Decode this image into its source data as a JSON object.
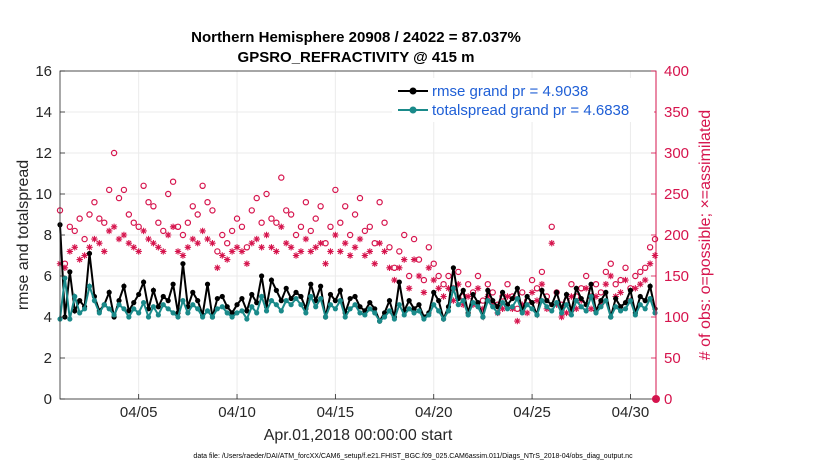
{
  "chart_data": {
    "type": "line",
    "title": "Northern Hemisphere 20908 / 24022 = 87.037%",
    "subtitle": "GPSRO_REFRACTIVITY @ 415 m",
    "xlabel": "Apr.01,2018 00:00:00 start",
    "ylabel_left": "rmse and totalspread",
    "ylabel_right": "# of obs: o=possible; ×=assimilated",
    "ylim_left": [
      0,
      16
    ],
    "ylim_right": [
      0,
      400
    ],
    "xlim": [
      1,
      31.3
    ],
    "yticks_left": [
      "0",
      "2",
      "4",
      "6",
      "8",
      "10",
      "12",
      "14",
      "16"
    ],
    "yticks_right": [
      "0",
      "50",
      "100",
      "150",
      "200",
      "250",
      "300",
      "350",
      "400"
    ],
    "xticks": [
      {
        "day": 5,
        "label": "04/05"
      },
      {
        "day": 10,
        "label": "04/10"
      },
      {
        "day": 15,
        "label": "04/15"
      },
      {
        "day": 20,
        "label": "04/20"
      },
      {
        "day": 25,
        "label": "04/25"
      },
      {
        "day": 30,
        "label": "04/30"
      }
    ],
    "series": [
      {
        "name": "rmse",
        "legend": "rmse grand pr = 4.9038",
        "color": "#000000",
        "values": [
          8.5,
          4.0,
          6.2,
          4.3,
          4.8,
          4.5,
          7.1,
          5.0,
          4.3,
          4.6,
          5.2,
          4.0,
          4.8,
          5.5,
          4.3,
          4.7,
          5.1,
          5.7,
          4.4,
          5.3,
          4.5,
          5.0,
          4.8,
          5.6,
          4.2,
          6.6,
          4.5,
          5.2,
          4.8,
          4.1,
          5.6,
          4.0,
          4.9,
          5.0,
          4.5,
          4.2,
          4.6,
          4.9,
          4.3,
          5.1,
          4.7,
          6.0,
          4.5,
          5.8,
          5.3,
          4.8,
          5.4,
          4.9,
          5.2,
          5.0,
          4.4,
          5.6,
          4.8,
          5.5,
          4.0,
          5.1,
          4.8,
          5.3,
          4.2,
          4.9,
          5.0,
          4.5,
          4.3,
          4.7,
          4.4,
          3.8,
          4.2,
          4.8,
          4.0,
          5.7,
          4.3,
          4.8,
          4.4,
          4.6,
          4.0,
          4.2,
          5.2,
          4.8,
          3.9,
          4.5,
          6.4,
          4.9,
          5.3,
          4.2,
          5.1,
          4.7,
          4.0,
          5.3,
          4.8,
          4.5,
          5.2,
          4.6,
          4.9,
          5.4,
          4.3,
          5.0,
          4.7,
          4.1,
          5.3,
          4.8,
          4.6,
          5.2,
          4.4,
          5.1,
          4.3,
          5.4,
          4.9,
          4.6,
          5.6,
          4.3,
          4.8,
          5.2,
          4.0,
          4.9,
          4.5,
          4.7,
          5.3,
          4.2,
          5.0,
          4.8,
          5.5,
          4.4,
          5.1,
          4.9,
          5.3,
          4.6,
          4.8,
          5.2,
          4.4,
          5.0,
          5.7,
          4.7,
          5.4,
          4.9,
          4.5,
          5.8,
          4.3,
          5.6,
          4.9,
          5.1,
          4.5,
          4.8,
          5.2,
          4.6,
          5.5,
          4.9,
          5.0,
          4.5,
          4.8,
          5.1,
          4.6,
          5.3,
          4.9,
          4.4,
          5.2,
          4.7,
          5.0,
          4.6,
          5.4,
          4.9,
          4.7,
          5.1,
          4.8,
          5.5,
          4.3,
          5.2,
          5.6,
          4.9,
          5.0,
          4.7,
          5.4,
          4.5,
          5.1,
          4.8,
          5.3,
          4.6,
          4.4,
          5.0,
          4.7,
          4.5,
          5.2,
          4.4,
          4.8,
          4.3,
          4.9,
          4.6,
          5.0,
          4.7,
          4.2,
          4.6,
          4.9,
          4.5,
          4.7,
          5.0,
          4.8,
          4.6,
          5.3,
          4.9,
          5.1,
          4.8,
          4.6,
          4.9,
          5.2,
          4.7,
          5.3,
          4.5,
          4.9,
          4.6,
          5.1,
          4.4,
          5.0,
          4.8,
          5.4,
          4.9,
          4.6,
          4.5,
          5.2,
          4.7,
          5.0,
          4.6,
          4.9,
          5.3,
          4.5,
          4.8,
          4.2,
          4.7,
          4.9,
          4.3,
          5.0,
          4.8,
          5.2,
          4.5,
          4.6,
          5.5,
          4.7,
          5.1,
          4.4,
          4.9,
          5.3,
          4.6,
          5.0,
          4.5,
          4.8,
          5.2,
          4.3,
          4.9,
          4.7,
          5.0,
          4.5
        ]
      },
      {
        "name": "totalspread",
        "legend": "totalspread grand pr = 4.6838",
        "color": "#1a8a8a",
        "values": [
          3.9,
          5.9,
          3.9,
          5.0,
          4.2,
          4.4,
          5.5,
          4.8,
          4.2,
          4.6,
          4.4,
          4.1,
          4.6,
          4.4,
          4.0,
          4.4,
          4.2,
          4.7,
          4.0,
          4.5,
          4.1,
          4.6,
          4.4,
          4.2,
          4.0,
          4.8,
          4.2,
          4.6,
          4.4,
          4.0,
          4.3,
          4.0,
          4.4,
          4.5,
          4.2,
          4.0,
          4.2,
          4.3,
          3.9,
          4.5,
          4.2,
          5.0,
          4.3,
          4.8,
          4.6,
          4.3,
          4.8,
          4.6,
          4.9,
          4.6,
          4.2,
          5.0,
          4.5,
          4.9,
          4.0,
          4.6,
          4.4,
          4.8,
          4.0,
          4.4,
          4.6,
          4.2,
          4.1,
          4.4,
          4.2,
          3.8,
          4.0,
          4.3,
          3.9,
          4.6,
          4.1,
          4.4,
          4.2,
          4.3,
          3.9,
          4.1,
          4.6,
          4.3,
          3.9,
          4.3,
          5.4,
          4.6,
          4.8,
          4.1,
          4.7,
          4.5,
          4.0,
          4.8,
          4.5,
          4.2,
          4.7,
          4.4,
          4.5,
          4.9,
          4.2,
          4.6,
          4.4,
          4.1,
          4.8,
          4.5,
          4.3,
          4.7,
          4.2,
          4.6,
          4.1,
          4.8,
          4.5,
          4.3,
          5.0,
          4.2,
          4.5,
          4.8,
          4.0,
          4.5,
          4.3,
          4.4,
          4.8,
          4.1,
          4.6,
          4.4,
          4.9,
          4.2,
          4.6,
          4.5,
          4.8,
          4.3,
          4.5,
          4.7,
          4.2,
          4.6,
          5.0,
          4.4,
          4.8,
          4.5,
          4.3,
          5.1,
          4.1,
          5.0,
          4.5,
          4.7,
          4.2,
          4.5,
          4.7,
          4.3,
          4.9,
          4.5,
          4.6,
          4.2,
          4.5,
          4.7,
          4.3,
          4.8,
          4.5,
          4.2,
          4.7,
          4.4,
          4.6,
          4.3,
          4.9,
          4.5,
          4.4,
          4.7,
          4.5,
          4.9,
          4.1,
          4.7,
          5.0,
          4.5,
          4.6,
          4.4,
          4.8,
          4.3,
          4.6,
          4.5,
          4.8,
          4.3,
          4.2,
          4.6,
          4.4,
          4.3,
          4.7,
          4.2,
          4.5,
          4.1,
          4.5,
          4.3,
          4.6,
          4.4,
          4.0,
          4.3,
          4.5,
          4.2,
          4.4,
          4.6,
          4.5,
          4.3,
          4.8,
          4.5,
          4.7,
          4.5,
          4.3,
          4.5,
          4.8,
          4.4,
          4.8,
          4.2,
          4.5,
          4.3,
          4.7,
          4.2,
          4.6,
          4.4,
          4.9,
          4.5,
          4.3,
          4.2,
          4.7,
          4.4,
          4.6,
          4.3,
          4.5,
          4.8,
          4.2,
          4.5,
          4.0,
          4.4,
          4.5,
          4.1,
          4.6,
          4.4,
          4.7,
          4.2,
          4.3,
          4.9,
          4.4,
          4.6,
          4.1,
          4.5,
          4.8,
          4.3,
          4.6,
          4.2,
          4.4,
          4.7,
          4.1,
          4.5,
          4.4,
          4.6,
          4.2
        ]
      }
    ],
    "obs_possible": [
      230,
      165,
      210,
      205,
      220,
      195,
      225,
      240,
      220,
      215,
      255,
      300,
      245,
      255,
      225,
      215,
      210,
      260,
      240,
      235,
      215,
      205,
      250,
      265,
      210,
      200,
      215,
      235,
      225,
      260,
      240,
      230,
      180,
      200,
      190,
      205,
      220,
      210,
      185,
      230,
      245,
      215,
      250,
      220,
      215,
      270,
      230,
      225,
      200,
      210,
      240,
      205,
      220,
      235,
      190,
      210,
      255,
      215,
      235,
      200,
      225,
      245,
      205,
      210,
      190,
      240,
      215,
      185,
      160,
      180,
      200,
      150,
      195,
      170,
      145,
      185,
      165,
      150,
      140,
      150,
      135,
      155,
      125,
      140,
      130,
      150,
      120,
      140,
      130,
      115,
      125,
      140,
      125,
      110,
      130,
      120,
      145,
      135,
      155,
      125,
      210,
      130,
      115,
      120,
      140,
      125,
      135,
      150,
      125,
      140,
      130,
      155,
      165,
      140,
      145,
      160,
      135,
      150,
      155,
      160,
      185,
      195,
      170,
      220,
      165,
      150,
      175,
      200,
      195,
      185,
      190,
      205,
      175,
      200,
      225,
      235,
      215,
      180,
      220,
      205,
      190,
      185,
      225,
      200,
      210,
      195,
      180,
      205,
      215,
      190,
      200,
      175,
      210,
      195,
      180,
      220,
      165,
      205,
      185,
      250,
      215,
      230,
      195,
      210,
      200,
      185,
      225,
      230,
      215,
      190,
      205,
      200,
      185,
      210,
      200,
      300,
      240,
      190,
      185,
      170,
      210,
      195,
      180,
      215,
      200,
      190,
      170,
      195,
      180,
      215,
      175,
      230,
      200,
      190,
      210,
      185,
      205,
      195,
      240,
      190,
      175,
      225,
      210,
      195,
      215,
      240,
      185,
      200,
      230,
      175,
      225,
      260,
      235,
      250,
      270,
      210,
      195,
      240,
      225,
      215,
      230,
      200,
      180,
      170,
      230,
      190,
      305,
      260,
      245,
      280,
      210,
      250,
      205,
      230,
      260,
      220,
      195,
      190,
      185,
      220,
      235
    ],
    "obs_assimilated": [
      165,
      160,
      180,
      185,
      170,
      175,
      185,
      195,
      190,
      180,
      205,
      210,
      195,
      200,
      190,
      185,
      180,
      205,
      195,
      190,
      185,
      180,
      200,
      210,
      180,
      175,
      185,
      195,
      190,
      205,
      195,
      190,
      160,
      175,
      170,
      180,
      185,
      180,
      165,
      190,
      195,
      185,
      200,
      185,
      180,
      210,
      190,
      185,
      175,
      180,
      195,
      180,
      185,
      190,
      165,
      180,
      200,
      180,
      190,
      175,
      185,
      195,
      175,
      180,
      165,
      190,
      180,
      160,
      145,
      160,
      170,
      135,
      170,
      150,
      130,
      160,
      145,
      135,
      125,
      135,
      120,
      140,
      115,
      125,
      115,
      135,
      110,
      125,
      115,
      105,
      110,
      125,
      110,
      95,
      115,
      105,
      130,
      120,
      140,
      110,
      190,
      115,
      100,
      105,
      125,
      110,
      120,
      135,
      110,
      125,
      115,
      140,
      150,
      125,
      130,
      145,
      120,
      135,
      140,
      145,
      165,
      175,
      155,
      195,
      150,
      135,
      160,
      180,
      175,
      165,
      170,
      185,
      160,
      180,
      200,
      210,
      195,
      165,
      200,
      185,
      175,
      165,
      200,
      180,
      190,
      175,
      160,
      185,
      195,
      170,
      180,
      155,
      190,
      175,
      160,
      195,
      150,
      185,
      165,
      220,
      195,
      205,
      175,
      190,
      180,
      165,
      200,
      205,
      195,
      170,
      185,
      180,
      165,
      190,
      180,
      260,
      215,
      170,
      165,
      150,
      185,
      175,
      160,
      190,
      180,
      170,
      150,
      175,
      160,
      190,
      155,
      205,
      180,
      170,
      185,
      165,
      180,
      175,
      210,
      170,
      155,
      200,
      185,
      175,
      190,
      215,
      165,
      180,
      205,
      155,
      200,
      230,
      210,
      220,
      235,
      185,
      175,
      215,
      200,
      190,
      205,
      180,
      160,
      150,
      205,
      170,
      265,
      230,
      215,
      245,
      190,
      220,
      180,
      205,
      230,
      195,
      175,
      170,
      165,
      195,
      210
    ]
  },
  "footer": "data file: /Users/raeder/DAI/ATM_forcXX/CAM6_setup/f.e21.FHIST_BGC.f09_025.CAM6assim.011/Diags_NTrS_2018-04/obs_diag_output.nc"
}
